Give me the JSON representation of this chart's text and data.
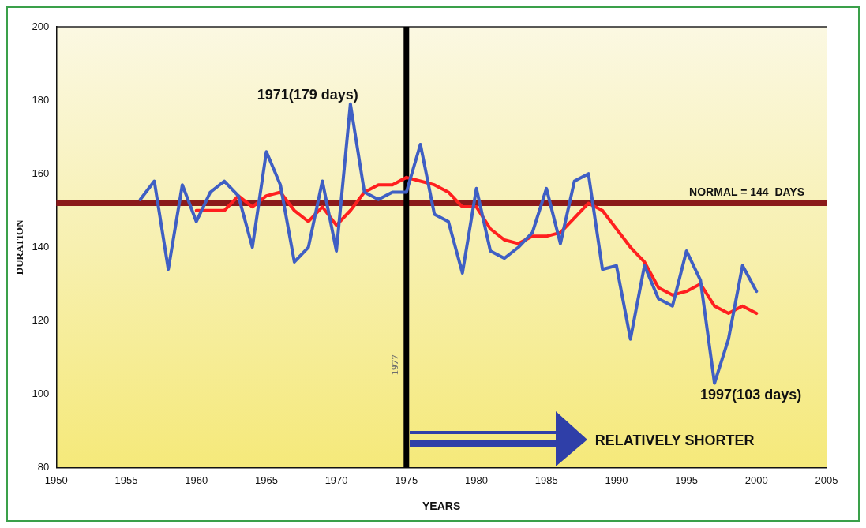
{
  "chart_data": {
    "type": "line",
    "xlabel": "YEARS",
    "ylabel": "DURATION",
    "xlim": [
      1950,
      2005
    ],
    "xticks": [
      1950,
      1955,
      1960,
      1965,
      1970,
      1975,
      1980,
      1985,
      1990,
      1995,
      2000,
      2005
    ],
    "ylim": [
      80,
      200
    ],
    "yticks": [
      80,
      100,
      120,
      140,
      160,
      180,
      200
    ],
    "grid": false,
    "legend": false,
    "marker": "none",
    "line_style": "solid",
    "series": [
      {
        "color": "#3f5fc4",
        "x": [
          1956,
          1957,
          1958,
          1959,
          1960,
          1961,
          1962,
          1963,
          1964,
          1965,
          1966,
          1967,
          1968,
          1969,
          1970,
          1971,
          1972,
          1973,
          1974,
          1975,
          1976,
          1977,
          1978,
          1979,
          1980,
          1981,
          1982,
          1983,
          1984,
          1985,
          1986,
          1987,
          1988,
          1989,
          1990,
          1991,
          1992,
          1993,
          1994,
          1995,
          1996,
          1997,
          1998,
          1999,
          2000
        ],
        "values": [
          153,
          158,
          134,
          157,
          147,
          155,
          158,
          154,
          140,
          166,
          157,
          136,
          140,
          158,
          139,
          179,
          155,
          153,
          155,
          155,
          168,
          149,
          147,
          133,
          156,
          139,
          137,
          140,
          144,
          156,
          141,
          158,
          160,
          134,
          135,
          115,
          135,
          126,
          124,
          139,
          131,
          103,
          115,
          135,
          128
        ]
      },
      {
        "color": "#ff1f1f",
        "x": [
          1960,
          1961,
          1962,
          1963,
          1964,
          1965,
          1966,
          1967,
          1968,
          1969,
          1970,
          1971,
          1972,
          1973,
          1974,
          1975,
          1976,
          1977,
          1978,
          1979,
          1980,
          1981,
          1982,
          1983,
          1984,
          1985,
          1986,
          1987,
          1988,
          1989,
          1990,
          1991,
          1992,
          1993,
          1994,
          1995,
          1996,
          1997,
          1998,
          1999,
          2000
        ],
        "values": [
          150,
          150,
          150,
          154,
          151,
          154,
          155,
          150,
          147,
          151,
          146,
          150,
          155,
          157,
          157,
          159,
          158,
          157,
          155,
          151,
          151,
          145,
          142,
          141,
          143,
          143,
          144,
          148,
          152,
          150,
          145,
          140,
          136,
          129,
          127,
          128,
          130,
          124,
          122,
          124,
          122
        ]
      }
    ],
    "ref_lines": [
      {
        "axis": "y",
        "value": 152,
        "color": "#8b1a1a"
      },
      {
        "axis": "x",
        "value": 1975,
        "color": "#000000"
      }
    ],
    "annotations": [
      {
        "text": "1971(179 days)",
        "x": 1971,
        "y": 179
      },
      {
        "text": "1997(103 days)",
        "x": 1997,
        "y": 103
      },
      "RELATIVELY SHORTER",
      "NORMAL = 144  DAYS",
      "1977"
    ]
  }
}
